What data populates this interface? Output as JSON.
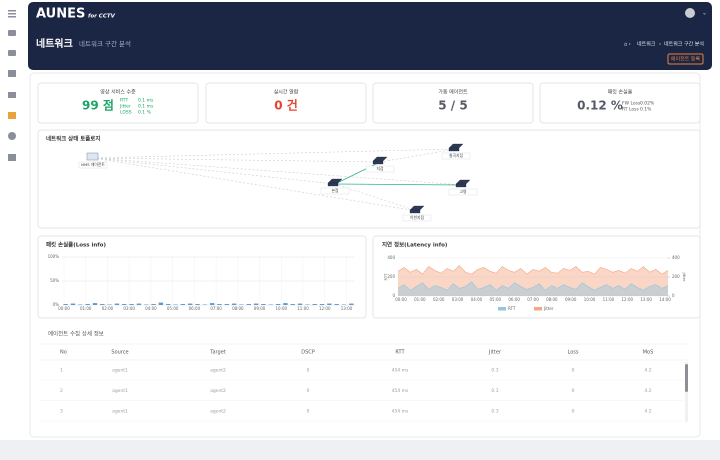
{
  "header": {
    "logo": "AUNES",
    "logo_sub": "for CCTV",
    "title": "네트워크",
    "subtitle": "네트워크 구간 분석",
    "breadcrumb": [
      "네트워크",
      "네트워크 구간 분석"
    ],
    "button": "에이전트 등록"
  },
  "kpis": [
    {
      "title": "영상 서비스 수준",
      "value": "99 점",
      "details": [
        {
          "label": "RTT",
          "value": "0.1 ms"
        },
        {
          "label": "Jitter",
          "value": "0.1 ms"
        },
        {
          "label": "LOSS",
          "value": "0.1 %"
        }
      ]
    },
    {
      "title": "실시간 알람",
      "value": "0 건"
    },
    {
      "title": "가동 에이전트",
      "value": "5 / 5"
    },
    {
      "title": "패킷 손실율",
      "value": "0.12 %",
      "details": [
        {
          "label": "FW Loss",
          "value": "0.02%"
        },
        {
          "label": "RT Loss",
          "value": "0.1%"
        }
      ]
    }
  ],
  "topology": {
    "title": "네트워크 상태 토폴로지",
    "nodes": [
      {
        "label": "NMS 에이전트"
      },
      {
        "label": "칠곡지점"
      },
      {
        "label": "지점"
      },
      {
        "label": "본점"
      },
      {
        "label": "고령"
      },
      {
        "label": "이천지점"
      }
    ]
  },
  "loss_chart": {
    "type": "bar",
    "title": "패킷 손실률(Loss info)",
    "color": "#5b9bd5",
    "ylim": [
      0,
      100
    ],
    "yticks": [
      {
        "value": 0,
        "label": "0%"
      },
      {
        "value": 50,
        "label": "50%"
      },
      {
        "value": 100,
        "label": "100%"
      }
    ],
    "xticks": [
      "00:00",
      "01:00",
      "02:00",
      "03:00",
      "04:00",
      "05:00",
      "06:00",
      "07:00",
      "08:00",
      "09:00",
      "10:00",
      "11:00",
      "12:00",
      "13:00"
    ],
    "values": [
      2,
      3,
      1,
      2,
      4,
      2,
      1,
      3,
      2,
      2,
      3,
      1,
      2,
      5,
      2,
      1,
      2,
      3,
      2,
      1,
      4,
      2,
      2,
      3,
      1,
      2,
      3,
      2,
      1,
      2,
      4,
      2,
      3,
      1,
      2,
      2,
      3,
      2,
      1,
      3
    ]
  },
  "latency_chart": {
    "type": "area",
    "title": "지연 정보(Latency info)",
    "ylabel": "RTT",
    "y2label": "Jitter",
    "ylim": [
      0,
      400
    ],
    "yticks": [
      0,
      200,
      400
    ],
    "y2lim": [
      0,
      400
    ],
    "y2ticks": [
      0,
      200,
      400
    ],
    "xticks": [
      "00:00",
      "01:00",
      "02:00",
      "03:00",
      "04:00",
      "05:00",
      "06:00",
      "07:00",
      "08:00",
      "09:00",
      "10:00",
      "11:00",
      "12:00",
      "13:00",
      "14:00"
    ],
    "series": [
      {
        "name": "Jitter",
        "color": "#f4a582",
        "axis": "y2",
        "values": [
          260,
          300,
          250,
          280,
          230,
          310,
          270,
          240,
          290,
          260,
          320,
          250,
          230,
          280,
          300,
          260,
          240,
          310,
          270,
          250,
          290,
          230,
          280,
          260,
          300,
          250,
          240,
          290,
          270,
          310,
          250,
          260,
          230,
          300,
          280,
          250,
          270,
          240,
          290,
          260,
          310,
          250,
          280,
          230,
          270
        ]
      },
      {
        "name": "RTT",
        "color": "#92c5de",
        "values": [
          80,
          120,
          60,
          100,
          140,
          70,
          110,
          90,
          60,
          130,
          80,
          100,
          150,
          70,
          90,
          120,
          60,
          110,
          80,
          140,
          100,
          70,
          90,
          130,
          60,
          110,
          80,
          120,
          90,
          70,
          140,
          100,
          60,
          90,
          120,
          80,
          110,
          70,
          130,
          90,
          60,
          100,
          120,
          80,
          110
        ]
      }
    ]
  },
  "table": {
    "title": "에이전트 수집 상세 정보",
    "columns": [
      "No",
      "Source",
      "Target",
      "DSCP",
      "RTT",
      "Jitter",
      "Loss",
      "MoS"
    ],
    "rows": [
      [
        "1",
        "agent1",
        "agent2",
        "0",
        "454 ms",
        "0.3",
        "0",
        "4.2"
      ],
      [
        "2",
        "agent1",
        "agent2",
        "0",
        "454 ms",
        "0.3",
        "0",
        "4.2"
      ],
      [
        "3",
        "agent1",
        "agent2",
        "0",
        "454 ms",
        "0.3",
        "0",
        "4.2"
      ]
    ]
  }
}
